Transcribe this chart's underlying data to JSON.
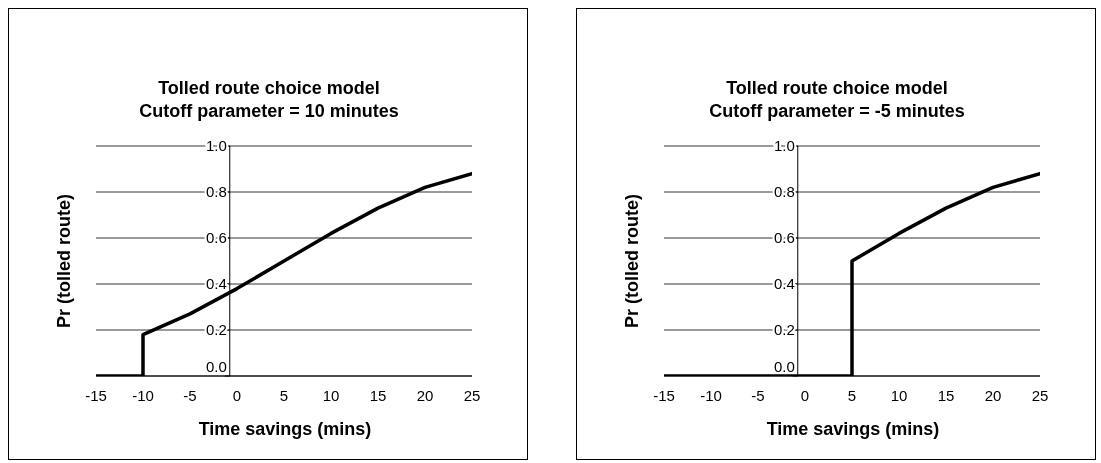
{
  "chart_data": [
    {
      "type": "line",
      "title": "Tolled route choice model\nCutoff parameter = 10 minutes",
      "xlabel": "Time savings (mins)",
      "ylabel": "Pr (tolled route)",
      "x": [
        -15,
        -10,
        -10,
        -5,
        0,
        5,
        10,
        15,
        20,
        25
      ],
      "series": [
        {
          "color": "#000000",
          "values": [
            0,
            0,
            0.18,
            0.27,
            0.38,
            0.5,
            0.62,
            0.73,
            0.82,
            0.88
          ]
        }
      ],
      "xlim": [
        -15,
        25
      ],
      "xticks": [
        -15,
        -10,
        -5,
        0,
        5,
        10,
        15,
        20,
        25
      ],
      "ylim": [
        0,
        1
      ],
      "yticks": [
        {
          "value": 0,
          "label": "0.0"
        },
        {
          "value": 0.2,
          "label": "0.2"
        },
        {
          "value": 0.4,
          "label": "0.4"
        },
        {
          "value": 0.6,
          "label": "0.6"
        },
        {
          "value": 0.8,
          "label": "0.8"
        },
        {
          "value": 1,
          "label": "1.0"
        }
      ],
      "grid": "y",
      "legend": false,
      "marker": "none",
      "line_style": "solid"
    },
    {
      "type": "line",
      "title": "Tolled route choice model\nCutoff parameter = -5 minutes",
      "xlabel": "Time savings (mins)",
      "ylabel": "Pr (tolled route)",
      "x": [
        -15,
        -10,
        -5,
        0,
        5,
        5,
        10,
        15,
        20,
        25
      ],
      "series": [
        {
          "color": "#000000",
          "values": [
            0,
            0,
            0,
            0,
            0,
            0.5,
            0.62,
            0.73,
            0.82,
            0.88
          ]
        }
      ],
      "xlim": [
        -15,
        25
      ],
      "xticks": [
        -15,
        -10,
        -5,
        0,
        5,
        10,
        15,
        20,
        25
      ],
      "ylim": [
        0,
        1
      ],
      "yticks": [
        {
          "value": 0,
          "label": "0.0"
        },
        {
          "value": 0.2,
          "label": "0.2"
        },
        {
          "value": 0.4,
          "label": "0.4"
        },
        {
          "value": 0.6,
          "label": "0.6"
        },
        {
          "value": 0.8,
          "label": "0.8"
        },
        {
          "value": 1,
          "label": "1.0"
        }
      ],
      "grid": "y",
      "legend": false,
      "marker": "none",
      "line_style": "solid"
    }
  ]
}
